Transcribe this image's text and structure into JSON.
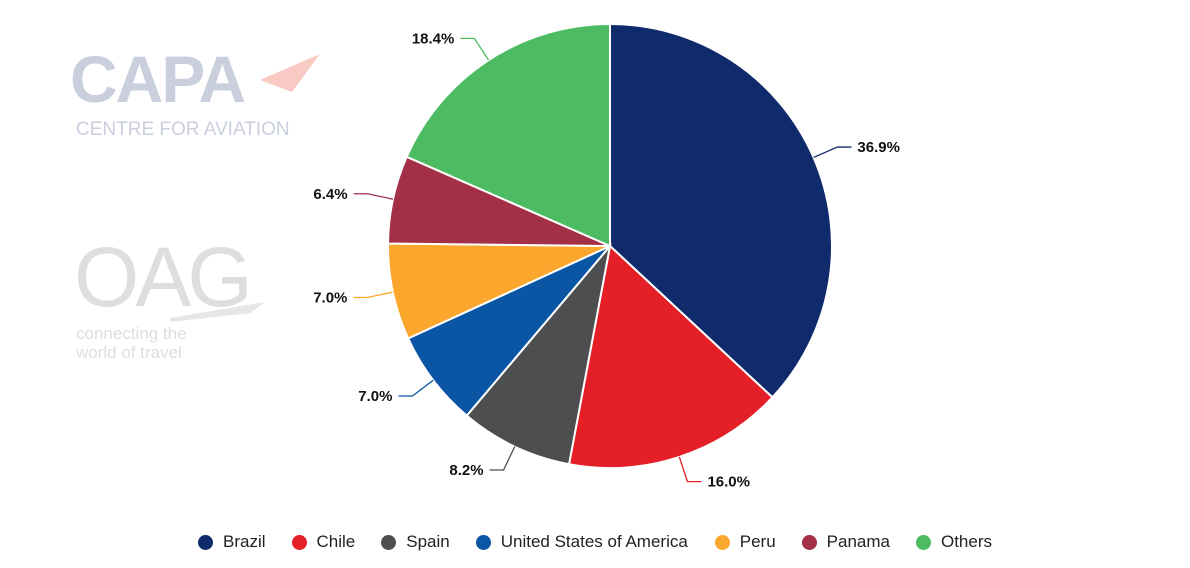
{
  "chart_data": {
    "type": "pie",
    "categories": [
      "Brazil",
      "Chile",
      "Spain",
      "United States of America",
      "Peru",
      "Panama",
      "Others"
    ],
    "values": [
      36.9,
      16.0,
      8.2,
      7.0,
      7.0,
      6.4,
      18.4
    ],
    "value_labels": [
      "36.9%",
      "16.0%",
      "8.2%",
      "7.0%",
      "7.0%",
      "6.4%",
      "18.4%"
    ],
    "colors": [
      "#0f2b6b",
      "#e51f28",
      "#4d4e50",
      "#0a56a5",
      "#fba72e",
      "#a33047",
      "#4cbb62"
    ],
    "legend_position": "bottom"
  },
  "watermark": {
    "capa_logo": "CAPA",
    "capa_subtitle": "CENTRE FOR AVIATION",
    "oag_logo": "OAG",
    "oag_tagline_line1": "connecting the",
    "oag_tagline_line2": "world of travel"
  }
}
